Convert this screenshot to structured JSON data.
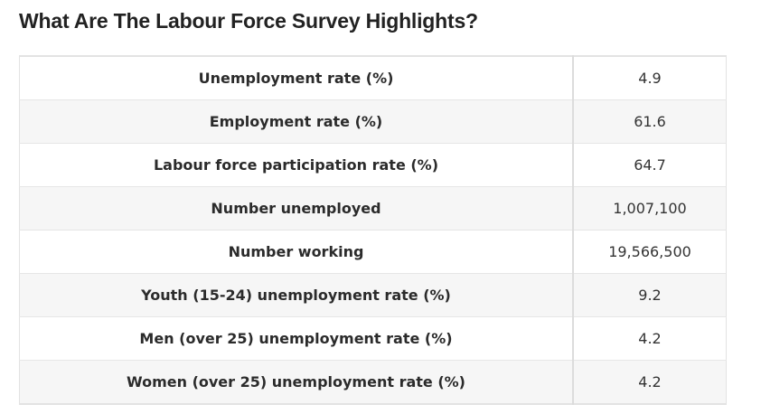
{
  "page": {
    "title": "What Are The Labour Force Survey Highlights?"
  },
  "table": {
    "rows": [
      {
        "label": "Unemployment rate (%)",
        "value": "4.9"
      },
      {
        "label": "Employment rate (%)",
        "value": "61.6"
      },
      {
        "label": "Labour force participation rate (%)",
        "value": "64.7"
      },
      {
        "label": "Number unemployed",
        "value": "1,007,100"
      },
      {
        "label": "Number working",
        "value": "19,566,500"
      },
      {
        "label": "Youth (15-24) unemployment rate (%)",
        "value": "9.2"
      },
      {
        "label": "Men (over 25) unemployment rate (%)",
        "value": "4.2"
      },
      {
        "label": "Women (over 25) unemployment rate (%)",
        "value": "4.2"
      }
    ]
  }
}
